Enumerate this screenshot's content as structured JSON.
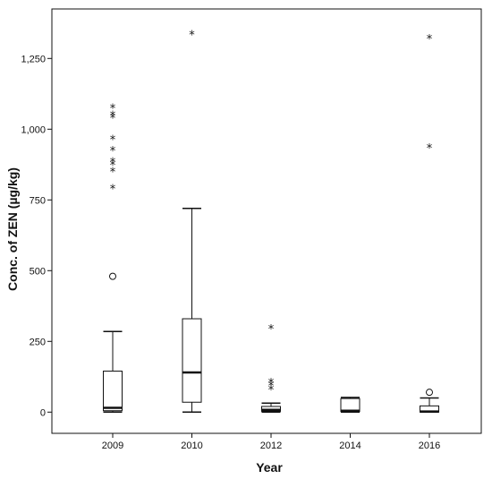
{
  "chart_data": {
    "type": "boxplot",
    "xlabel": "Year",
    "ylabel": "Conc. of ZEN (µg/kg)",
    "categories": [
      "2009",
      "2010",
      "2012",
      "2014",
      "2016"
    ],
    "ylim": [
      -75,
      1425
    ],
    "yticks": [
      0,
      250,
      500,
      750,
      1000,
      1250
    ],
    "ytick_labels": [
      "0",
      "250",
      "500",
      "750",
      "1,000",
      "1,250"
    ],
    "grid": false,
    "legend": "none",
    "boxes": [
      {
        "category": "2009",
        "min": 0,
        "q1": 5,
        "median": 15,
        "q3": 145,
        "max": 285,
        "outliers": [
          480
        ],
        "extremes": [
          790,
          850,
          875,
          885,
          925,
          965,
          1040,
          1050,
          1075
        ]
      },
      {
        "category": "2010",
        "min": 0,
        "q1": 35,
        "median": 140,
        "q3": 330,
        "max": 720,
        "outliers": [],
        "extremes": [
          1335
        ]
      },
      {
        "category": "2012",
        "min": 0,
        "q1": 3,
        "median": 8,
        "q3": 20,
        "max": 32,
        "outliers": [],
        "extremes": [
          80,
          95,
          105,
          295
        ]
      },
      {
        "category": "2014",
        "min": 0,
        "q1": 2,
        "median": 5,
        "q3": 48,
        "max": 52,
        "outliers": [],
        "extremes": []
      },
      {
        "category": "2016",
        "min": 0,
        "q1": 0,
        "median": 2,
        "q3": 22,
        "max": 50,
        "outliers": [
          70
        ],
        "extremes": [
          935,
          1320
        ]
      }
    ],
    "colors": {
      "box_fill": "#ffffff",
      "stroke": "#111111",
      "background": "#ffffff"
    }
  }
}
